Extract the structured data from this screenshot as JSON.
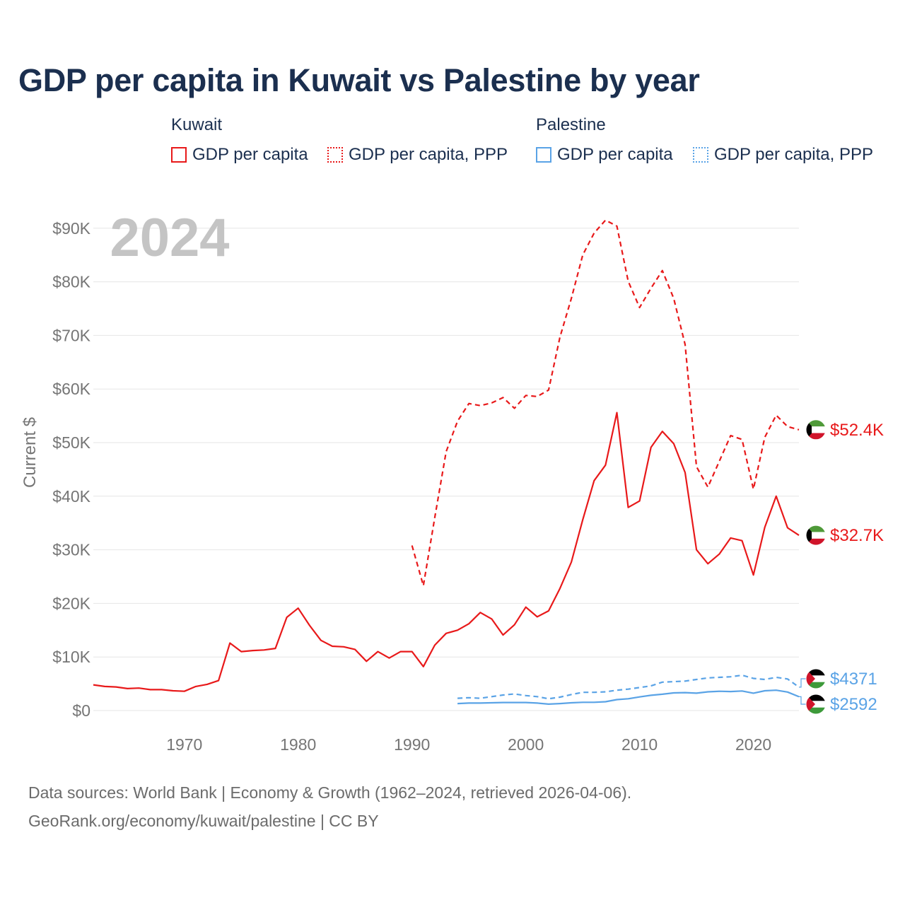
{
  "colors": {
    "kuwait": "#e8191a",
    "palestine": "#5aa3e6",
    "title": "#1b2f4f",
    "grid": "#e6e6e6",
    "axis_text": "#757575",
    "year_watermark": "#c4c4c4"
  },
  "legend": {
    "groups": [
      {
        "name": "Kuwait",
        "items": [
          {
            "label": "GDP per capita",
            "style": "solid"
          },
          {
            "label": "GDP per capita, PPP",
            "style": "dotted"
          }
        ]
      },
      {
        "name": "Palestine",
        "items": [
          {
            "label": "GDP per capita",
            "style": "solid"
          },
          {
            "label": "GDP per capita, PPP",
            "style": "dotted"
          }
        ]
      }
    ]
  },
  "chart_data": {
    "type": "line",
    "title": "GDP per capita in Kuwait vs Palestine by year",
    "year_watermark": "2024",
    "ylabel": "Current $",
    "xlabel": "",
    "xlim": [
      1962,
      2024
    ],
    "ylim": [
      0,
      93000
    ],
    "x_ticks": [
      1970,
      1980,
      1990,
      2000,
      2010,
      2020
    ],
    "y_ticks": [
      0,
      10000,
      20000,
      30000,
      40000,
      50000,
      60000,
      70000,
      80000,
      90000
    ],
    "y_tick_labels": [
      "$0",
      "$10K",
      "$20K",
      "$30K",
      "$40K",
      "$50K",
      "$60K",
      "$70K",
      "$80K",
      "$90K"
    ],
    "series": [
      {
        "name": "Kuwait GDP per capita",
        "country": "kuwait",
        "style": "solid",
        "end_label": "$32.7K",
        "x": [
          1962,
          1963,
          1964,
          1965,
          1966,
          1967,
          1968,
          1969,
          1970,
          1971,
          1972,
          1973,
          1974,
          1975,
          1976,
          1977,
          1978,
          1979,
          1980,
          1981,
          1982,
          1983,
          1984,
          1985,
          1986,
          1987,
          1988,
          1989,
          1990,
          1991,
          1992,
          1993,
          1994,
          1995,
          1996,
          1997,
          1998,
          1999,
          2000,
          2001,
          2002,
          2003,
          2004,
          2005,
          2006,
          2007,
          2008,
          2009,
          2010,
          2011,
          2012,
          2013,
          2014,
          2015,
          2016,
          2017,
          2018,
          2019,
          2020,
          2021,
          2022,
          2023,
          2024
        ],
        "values": [
          4800,
          4500,
          4400,
          4100,
          4200,
          3900,
          3900,
          3700,
          3600,
          4500,
          4900,
          5600,
          12600,
          11000,
          11200,
          11300,
          11600,
          17400,
          19100,
          15900,
          13100,
          12000,
          11900,
          11400,
          9200,
          11000,
          9800,
          11000,
          11000,
          8200,
          12200,
          14400,
          15000,
          16200,
          18300,
          17100,
          14100,
          16000,
          19300,
          17500,
          18600,
          22800,
          27700,
          35600,
          42900,
          45800,
          55600,
          37900,
          39100,
          49100,
          52100,
          49800,
          44400,
          30000,
          27400,
          29200,
          32200,
          31700,
          25300,
          34200,
          40000,
          34100,
          32700
        ]
      },
      {
        "name": "Kuwait GDP per capita, PPP",
        "country": "kuwait",
        "style": "dotted",
        "end_label": "$52.4K",
        "x": [
          1990,
          1991,
          1992,
          1993,
          1994,
          1995,
          1996,
          1997,
          1998,
          1999,
          2000,
          2001,
          2002,
          2003,
          2004,
          2005,
          2006,
          2007,
          2008,
          2009,
          2010,
          2011,
          2012,
          2013,
          2014,
          2015,
          2016,
          2017,
          2018,
          2019,
          2020,
          2021,
          2022,
          2023,
          2024
        ],
        "values": [
          30800,
          23300,
          36000,
          48300,
          54000,
          57300,
          56900,
          57400,
          58400,
          56400,
          58800,
          58600,
          59800,
          69700,
          76900,
          85000,
          89100,
          91500,
          90400,
          80100,
          75200,
          78800,
          82100,
          76900,
          68300,
          45500,
          41700,
          46500,
          51300,
          50600,
          41300,
          51000,
          55100,
          53000,
          52400
        ]
      },
      {
        "name": "Palestine GDP per capita",
        "country": "palestine",
        "style": "solid",
        "end_label": "$2592",
        "x": [
          1994,
          1995,
          1996,
          1997,
          1998,
          1999,
          2000,
          2001,
          2002,
          2003,
          2004,
          2005,
          2006,
          2007,
          2008,
          2009,
          2010,
          2011,
          2012,
          2013,
          2014,
          2015,
          2016,
          2017,
          2018,
          2019,
          2020,
          2021,
          2022,
          2023,
          2024
        ],
        "values": [
          1300,
          1400,
          1400,
          1450,
          1500,
          1500,
          1500,
          1400,
          1200,
          1300,
          1450,
          1550,
          1550,
          1650,
          2050,
          2200,
          2550,
          2850,
          3050,
          3300,
          3350,
          3250,
          3500,
          3600,
          3550,
          3650,
          3250,
          3700,
          3800,
          3450,
          2592
        ]
      },
      {
        "name": "Palestine GDP per capita, PPP",
        "country": "palestine",
        "style": "dotted",
        "end_label": "$4371",
        "x": [
          1994,
          1995,
          1996,
          1997,
          1998,
          1999,
          2000,
          2001,
          2002,
          2003,
          2004,
          2005,
          2006,
          2007,
          2008,
          2009,
          2010,
          2011,
          2012,
          2013,
          2014,
          2015,
          2016,
          2017,
          2018,
          2019,
          2020,
          2021,
          2022,
          2023,
          2024
        ],
        "values": [
          2300,
          2400,
          2300,
          2600,
          2900,
          3100,
          2800,
          2600,
          2200,
          2500,
          3000,
          3400,
          3400,
          3500,
          3800,
          4000,
          4300,
          4600,
          5300,
          5400,
          5500,
          5800,
          6100,
          6200,
          6300,
          6600,
          6000,
          5800,
          6200,
          5900,
          4371
        ]
      }
    ],
    "end_labels": [
      {
        "text": "$52.4K",
        "country": "kuwait"
      },
      {
        "text": "$32.7K",
        "country": "kuwait"
      },
      {
        "text": "$4371",
        "country": "palestine"
      },
      {
        "text": "$2592",
        "country": "palestine"
      }
    ]
  },
  "footer": {
    "line1": "Data sources: World Bank | Economy & Growth (1962–2024, retrieved 2026-04-06).",
    "line2": "GeoRank.org/economy/kuwait/palestine | CC BY"
  }
}
